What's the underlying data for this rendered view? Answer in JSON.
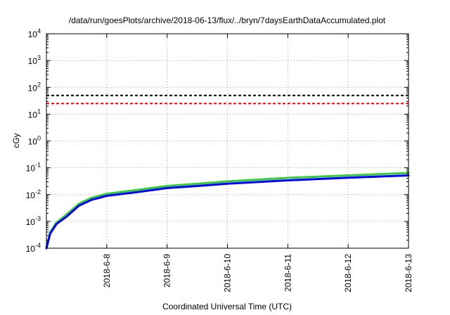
{
  "chart_data": {
    "type": "line",
    "title": "/data/run/goesPlots/archive/2018-06-13/flux/../bryn/7daysEarthDataAccumulated.plot",
    "xlabel": "Coordinated Universal Time (UTC)",
    "ylabel": "cGy",
    "yscale": "log",
    "xlim": [
      "2018-06-07 00:00",
      "2018-06-13 00:00"
    ],
    "ylim": [
      0.0001,
      10000
    ],
    "x_ticks": [
      "2018-6-8",
      "2018-6-9",
      "2018-6-10",
      "2018-6-11",
      "2018-6-12",
      "2018-6-13"
    ],
    "y_ticks": [
      {
        "base": "10",
        "exp": "-4"
      },
      {
        "base": "10",
        "exp": "-3"
      },
      {
        "base": "10",
        "exp": "-2"
      },
      {
        "base": "10",
        "exp": "-1"
      },
      {
        "base": "10",
        "exp": "0"
      },
      {
        "base": "10",
        "exp": "1"
      },
      {
        "base": "10",
        "exp": "2"
      },
      {
        "base": "10",
        "exp": "3"
      },
      {
        "base": "10",
        "exp": "4"
      }
    ],
    "grid": true,
    "thresholds": [
      {
        "value": 50,
        "color": "#000000",
        "style": "dashed"
      },
      {
        "value": 25,
        "color": "#ff0000",
        "style": "dashed"
      }
    ],
    "series": [
      {
        "color": "#33cc33",
        "x": [
          "2018-06-07 00:00",
          "2018-06-07 01:30",
          "2018-06-07 04:00",
          "2018-06-07 08:00",
          "2018-06-07 13:00",
          "2018-06-07 18:00",
          "2018-06-08 00:00",
          "2018-06-08 12:00",
          "2018-06-09 00:00",
          "2018-06-09 12:00",
          "2018-06-10 00:00",
          "2018-06-10 12:00",
          "2018-06-11 00:00",
          "2018-06-11 12:00",
          "2018-06-12 00:00",
          "2018-06-12 12:00",
          "2018-06-13 00:00"
        ],
        "y": [
          0.0001,
          0.0004,
          0.0009,
          0.0018,
          0.0046,
          0.0076,
          0.0107,
          0.0148,
          0.021,
          0.0253,
          0.031,
          0.036,
          0.042,
          0.0465,
          0.052,
          0.0575,
          0.064
        ]
      },
      {
        "color": "#0000ff",
        "x": [
          "2018-06-07 00:00",
          "2018-06-07 01:30",
          "2018-06-07 04:00",
          "2018-06-07 08:00",
          "2018-06-07 13:00",
          "2018-06-07 18:00",
          "2018-06-08 00:00",
          "2018-06-08 12:00",
          "2018-06-09 00:00",
          "2018-06-09 12:00",
          "2018-06-10 00:00",
          "2018-06-10 12:00",
          "2018-06-11 00:00",
          "2018-06-11 12:00",
          "2018-06-12 00:00",
          "2018-06-12 12:00",
          "2018-06-13 00:00"
        ],
        "y": [
          0.0001,
          0.00035,
          0.0008,
          0.0015,
          0.0039,
          0.0064,
          0.009,
          0.0123,
          0.0175,
          0.021,
          0.0255,
          0.0295,
          0.034,
          0.038,
          0.0425,
          0.047,
          0.052
        ]
      }
    ]
  }
}
